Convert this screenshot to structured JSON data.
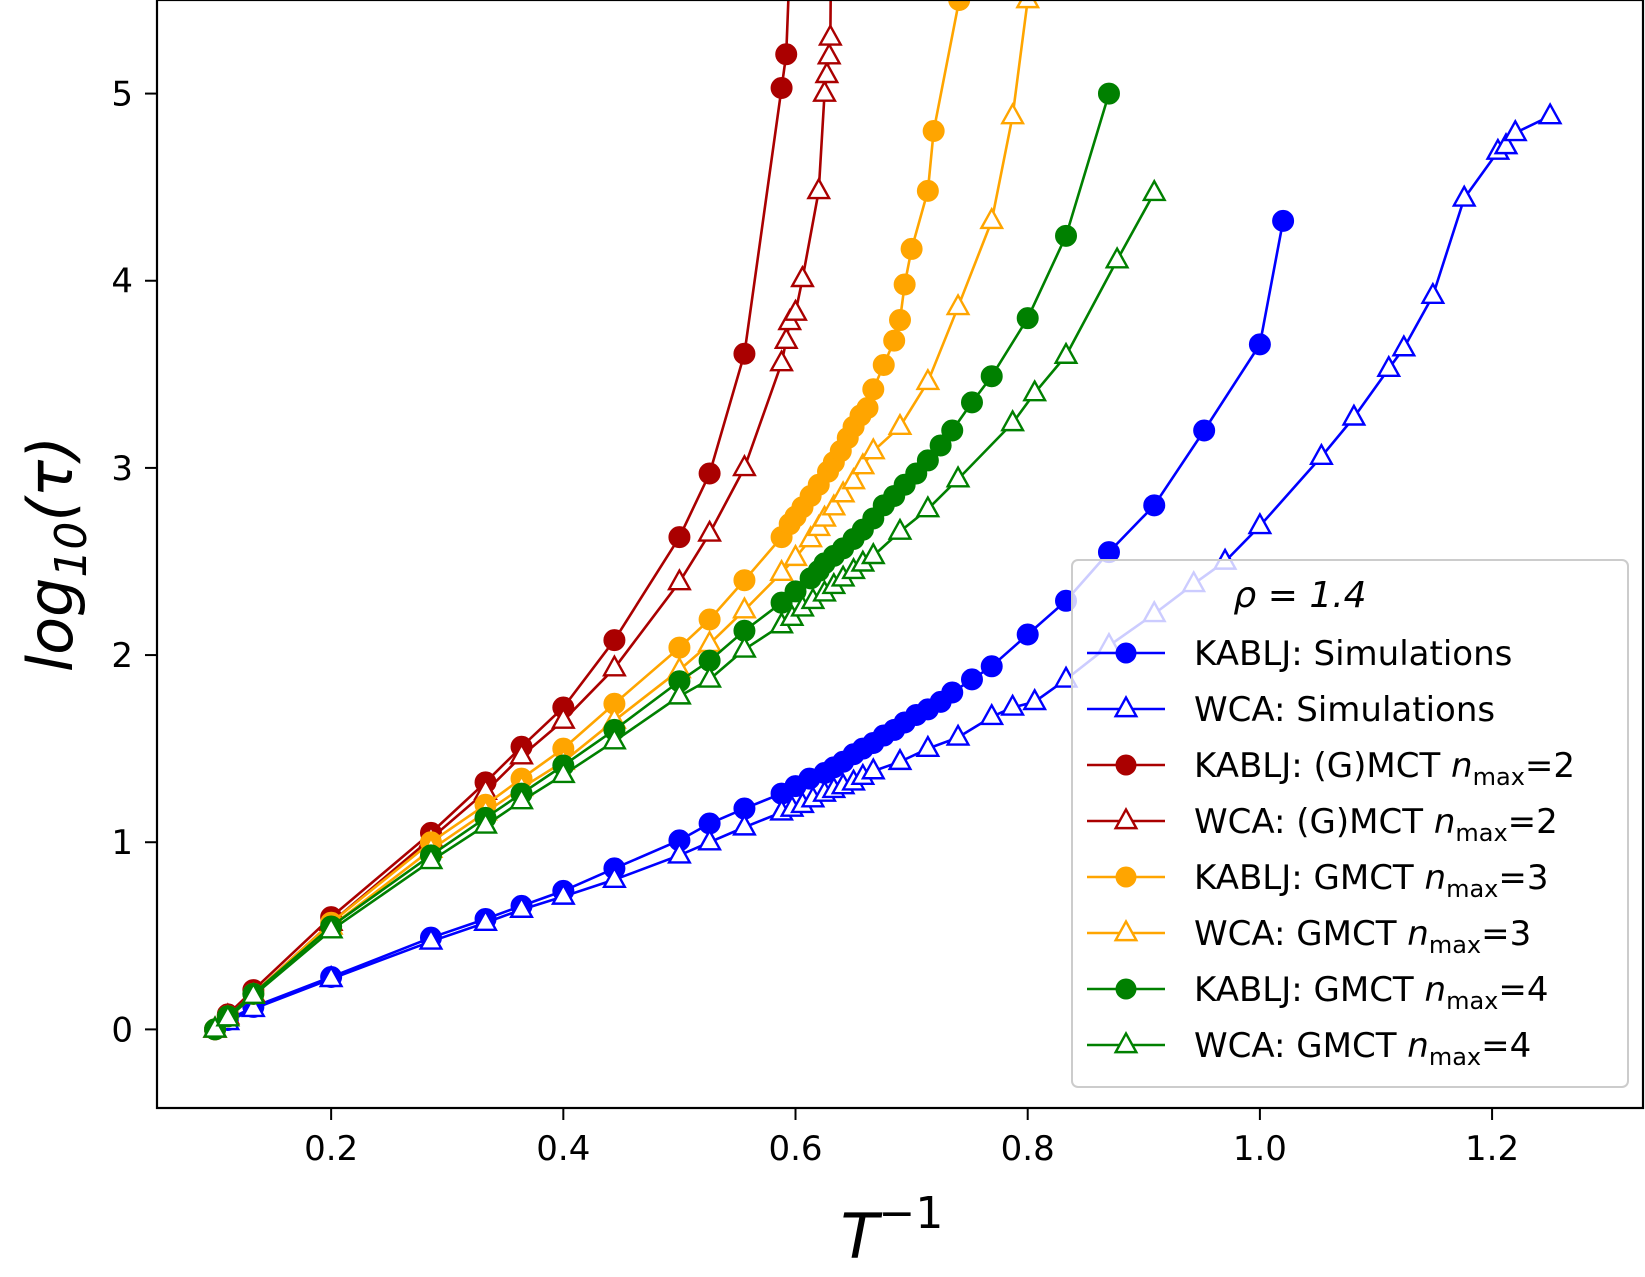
{
  "chart_data": {
    "type": "line",
    "xlabel": "T",
    "xlabel_sup": "−1",
    "ylabel": "log",
    "ylabel_sub": "10",
    "ylabel_tail": "(τ)",
    "xlim": [
      0.05,
      1.33
    ],
    "ylim": [
      -0.42,
      5.5
    ],
    "xticks": [
      0.2,
      0.4,
      0.6,
      0.8,
      1.0,
      1.2
    ],
    "xtick_labels": [
      "0.2",
      "0.4",
      "0.6",
      "0.8",
      "1.0",
      "1.2"
    ],
    "yticks": [
      0,
      1,
      2,
      3,
      4,
      5
    ],
    "ytick_labels": [
      "0",
      "1",
      "2",
      "3",
      "4",
      "5"
    ],
    "grid": false,
    "legend": {
      "placement": "lower-right",
      "title": "ρ = 1.4"
    },
    "series": [
      {
        "name": "KABLJ: Simulations",
        "label_main": "KABLJ: Simulations",
        "label_var": "",
        "label_sub": "",
        "label_tail": "",
        "color": "#0000ff",
        "marker": "circle",
        "x": [
          0.1,
          0.111,
          0.133,
          0.2,
          0.286,
          0.333,
          0.364,
          0.4,
          0.444,
          0.5,
          0.526,
          0.556,
          0.588,
          0.6,
          0.612,
          0.625,
          0.633,
          0.641,
          0.65,
          0.658,
          0.667,
          0.676,
          0.685,
          0.694,
          0.704,
          0.714,
          0.725,
          0.735,
          0.752,
          0.769,
          0.8,
          0.833,
          0.87,
          0.909,
          0.952,
          1.0,
          1.02
        ],
        "y": [
          0.0,
          0.05,
          0.12,
          0.28,
          0.49,
          0.59,
          0.66,
          0.74,
          0.86,
          1.01,
          1.1,
          1.18,
          1.26,
          1.3,
          1.34,
          1.37,
          1.4,
          1.43,
          1.47,
          1.5,
          1.53,
          1.57,
          1.6,
          1.64,
          1.68,
          1.71,
          1.75,
          1.8,
          1.87,
          1.94,
          2.11,
          2.29,
          2.55,
          2.8,
          3.2,
          3.66,
          4.32
        ]
      },
      {
        "name": "WCA: Simulations",
        "label_main": "WCA: Simulations",
        "label_var": "",
        "label_sub": "",
        "label_tail": "",
        "color": "#0000ff",
        "marker": "triangle",
        "x": [
          0.1,
          0.111,
          0.133,
          0.2,
          0.286,
          0.333,
          0.364,
          0.4,
          0.444,
          0.5,
          0.526,
          0.556,
          0.588,
          0.597,
          0.606,
          0.615,
          0.625,
          0.633,
          0.641,
          0.65,
          0.658,
          0.667,
          0.69,
          0.714,
          0.74,
          0.769,
          0.787,
          0.806,
          0.833,
          0.87,
          0.909,
          0.943,
          0.97,
          1.0,
          1.053,
          1.081,
          1.111,
          1.124,
          1.149,
          1.176,
          1.205,
          1.212,
          1.22,
          1.25
        ],
        "y": [
          0.0,
          0.04,
          0.11,
          0.27,
          0.47,
          0.57,
          0.64,
          0.71,
          0.8,
          0.93,
          1.0,
          1.08,
          1.16,
          1.18,
          1.2,
          1.23,
          1.26,
          1.28,
          1.3,
          1.32,
          1.35,
          1.38,
          1.43,
          1.5,
          1.56,
          1.67,
          1.72,
          1.75,
          1.87,
          2.05,
          2.22,
          2.38,
          2.5,
          2.69,
          3.06,
          3.27,
          3.53,
          3.64,
          3.92,
          4.44,
          4.69,
          4.72,
          4.79,
          4.88
        ]
      },
      {
        "name": "KABLJ: (G)MCT n_max=2",
        "label_main": "KABLJ: (G)MCT ",
        "label_var": "n",
        "label_sub": "max",
        "label_tail": "=2",
        "color": "#aa0000",
        "marker": "circle",
        "x": [
          0.1,
          0.111,
          0.133,
          0.2,
          0.286,
          0.333,
          0.364,
          0.4,
          0.444,
          0.5,
          0.526,
          0.556,
          0.588,
          0.592,
          0.597,
          0.6
        ],
        "y": [
          0.0,
          0.08,
          0.21,
          0.6,
          1.05,
          1.32,
          1.51,
          1.72,
          2.08,
          2.63,
          2.97,
          3.61,
          5.03,
          5.21,
          6.0,
          7.0
        ]
      },
      {
        "name": "WCA: (G)MCT n_max=2",
        "label_main": "WCA: (G)MCT ",
        "label_var": "n",
        "label_sub": "max",
        "label_tail": "=2",
        "color": "#aa0000",
        "marker": "triangle",
        "x": [
          0.1,
          0.111,
          0.133,
          0.2,
          0.286,
          0.333,
          0.364,
          0.4,
          0.444,
          0.5,
          0.526,
          0.556,
          0.588,
          0.592,
          0.595,
          0.6,
          0.606,
          0.62,
          0.625,
          0.627,
          0.629,
          0.63,
          0.631,
          0.633
        ],
        "y": [
          0.0,
          0.07,
          0.19,
          0.57,
          1.02,
          1.27,
          1.46,
          1.65,
          1.93,
          2.39,
          2.65,
          3.0,
          3.56,
          3.68,
          3.78,
          3.83,
          4.01,
          4.48,
          5.0,
          5.1,
          5.2,
          5.3,
          6.0,
          7.0
        ]
      },
      {
        "name": "KABLJ: GMCT n_max=3",
        "label_main": "KABLJ: GMCT ",
        "label_var": "n",
        "label_sub": "max",
        "label_tail": "=3",
        "color": "#ffa500",
        "marker": "circle",
        "x": [
          0.1,
          0.111,
          0.133,
          0.2,
          0.286,
          0.333,
          0.364,
          0.4,
          0.444,
          0.5,
          0.526,
          0.556,
          0.588,
          0.595,
          0.6,
          0.606,
          0.613,
          0.62,
          0.628,
          0.633,
          0.639,
          0.645,
          0.65,
          0.656,
          0.662,
          0.667,
          0.676,
          0.685,
          0.69,
          0.694,
          0.7,
          0.714,
          0.719,
          0.741,
          0.75
        ],
        "y": [
          0.0,
          0.07,
          0.19,
          0.57,
          1.0,
          1.2,
          1.34,
          1.5,
          1.74,
          2.04,
          2.19,
          2.4,
          2.63,
          2.7,
          2.74,
          2.79,
          2.85,
          2.91,
          2.98,
          3.03,
          3.09,
          3.16,
          3.22,
          3.28,
          3.32,
          3.42,
          3.55,
          3.68,
          3.79,
          3.98,
          4.17,
          4.48,
          4.8,
          5.5,
          6.5
        ]
      },
      {
        "name": "WCA: GMCT n_max=3",
        "label_main": "WCA: GMCT ",
        "label_var": "n",
        "label_sub": "max",
        "label_tail": "=3",
        "color": "#ffa500",
        "marker": "triangle",
        "x": [
          0.1,
          0.111,
          0.133,
          0.2,
          0.286,
          0.333,
          0.364,
          0.4,
          0.444,
          0.5,
          0.526,
          0.556,
          0.588,
          0.6,
          0.613,
          0.62,
          0.625,
          0.633,
          0.641,
          0.65,
          0.658,
          0.667,
          0.69,
          0.714,
          0.74,
          0.769,
          0.787,
          0.8,
          0.806
        ],
        "y": [
          0.0,
          0.06,
          0.18,
          0.55,
          0.96,
          1.16,
          1.29,
          1.43,
          1.65,
          1.92,
          2.06,
          2.24,
          2.44,
          2.52,
          2.62,
          2.68,
          2.73,
          2.79,
          2.86,
          2.93,
          3.01,
          3.09,
          3.22,
          3.46,
          3.86,
          4.32,
          4.88,
          5.5,
          6.5
        ]
      },
      {
        "name": "KABLJ: GMCT n_max=4",
        "label_main": "KABLJ: GMCT ",
        "label_var": "n",
        "label_sub": "max",
        "label_tail": "=4",
        "color": "#008000",
        "marker": "circle",
        "x": [
          0.1,
          0.111,
          0.133,
          0.2,
          0.286,
          0.333,
          0.364,
          0.4,
          0.444,
          0.5,
          0.526,
          0.556,
          0.588,
          0.6,
          0.613,
          0.62,
          0.625,
          0.633,
          0.641,
          0.65,
          0.658,
          0.667,
          0.676,
          0.685,
          0.694,
          0.704,
          0.714,
          0.725,
          0.735,
          0.752,
          0.769,
          0.8,
          0.833,
          0.87
        ],
        "y": [
          0.0,
          0.07,
          0.19,
          0.55,
          0.93,
          1.13,
          1.26,
          1.41,
          1.6,
          1.86,
          1.97,
          2.13,
          2.28,
          2.34,
          2.41,
          2.45,
          2.49,
          2.53,
          2.57,
          2.62,
          2.67,
          2.73,
          2.8,
          2.85,
          2.91,
          2.97,
          3.04,
          3.12,
          3.2,
          3.35,
          3.49,
          3.8,
          4.24,
          5.0
        ]
      },
      {
        "name": "WCA: GMCT n_max=4",
        "label_main": "WCA: GMCT ",
        "label_var": "n",
        "label_sub": "max",
        "label_tail": "=4",
        "color": "#008000",
        "marker": "triangle",
        "x": [
          0.1,
          0.111,
          0.133,
          0.2,
          0.286,
          0.333,
          0.364,
          0.4,
          0.444,
          0.5,
          0.526,
          0.556,
          0.588,
          0.597,
          0.606,
          0.615,
          0.625,
          0.633,
          0.641,
          0.65,
          0.658,
          0.667,
          0.69,
          0.714,
          0.74,
          0.787,
          0.806,
          0.833,
          0.877,
          0.909
        ],
        "y": [
          0.0,
          0.06,
          0.18,
          0.53,
          0.9,
          1.09,
          1.22,
          1.36,
          1.54,
          1.78,
          1.87,
          2.03,
          2.16,
          2.2,
          2.25,
          2.29,
          2.33,
          2.37,
          2.41,
          2.45,
          2.49,
          2.53,
          2.66,
          2.78,
          2.94,
          3.24,
          3.4,
          3.6,
          4.11,
          4.47
        ]
      }
    ]
  }
}
